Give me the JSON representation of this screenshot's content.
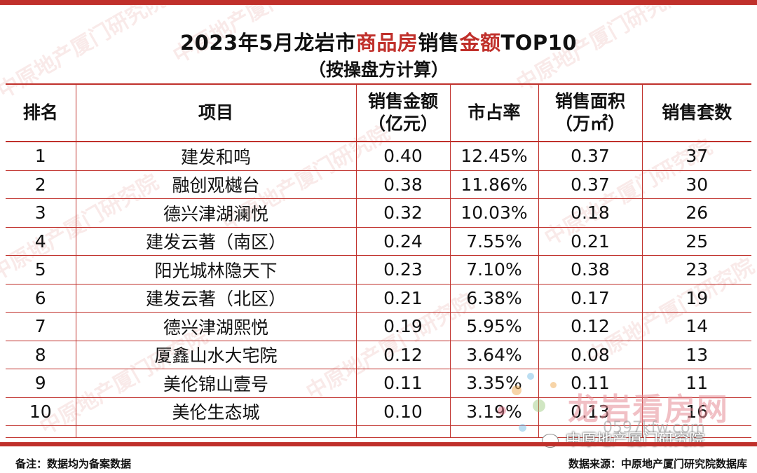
{
  "title": {
    "part1": "2023年5月龙岩市",
    "highlight1": "商品房",
    "part2": "销售",
    "highlight2": "金额",
    "part3": "TOP10",
    "subtitle": "（按操盘方计算）"
  },
  "table": {
    "headers": {
      "rank": "排名",
      "project": "项目",
      "amount_line1": "销售金额",
      "amount_line2": "（亿元）",
      "share": "市占率",
      "area_line1": "销售面积",
      "area_line2": "（万㎡）",
      "units": "销售套数"
    },
    "rows": [
      {
        "rank": "1",
        "project": "建发和鸣",
        "amount": "0.40",
        "share": "12.45%",
        "area": "0.37",
        "units": "37"
      },
      {
        "rank": "2",
        "project": "融创观樾台",
        "amount": "0.38",
        "share": "11.86%",
        "area": "0.37",
        "units": "30"
      },
      {
        "rank": "3",
        "project": "德兴津湖澜悦",
        "amount": "0.32",
        "share": "10.03%",
        "area": "0.18",
        "units": "26"
      },
      {
        "rank": "4",
        "project": "建发云著（南区）",
        "amount": "0.24",
        "share": "7.55%",
        "area": "0.21",
        "units": "25"
      },
      {
        "rank": "5",
        "project": "阳光城林隐天下",
        "amount": "0.23",
        "share": "7.10%",
        "area": "0.38",
        "units": "23"
      },
      {
        "rank": "6",
        "project": "建发云著（北区）",
        "amount": "0.21",
        "share": "6.38%",
        "area": "0.17",
        "units": "19"
      },
      {
        "rank": "7",
        "project": "德兴津湖熙悦",
        "amount": "0.19",
        "share": "5.95%",
        "area": "0.12",
        "units": "14"
      },
      {
        "rank": "8",
        "project": "厦鑫山水大宅院",
        "amount": "0.12",
        "share": "3.64%",
        "area": "0.08",
        "units": "13"
      },
      {
        "rank": "9",
        "project": "美伦锦山壹号",
        "amount": "0.11",
        "share": "3.35%",
        "area": "0.11",
        "units": "11"
      },
      {
        "rank": "10",
        "project": "美伦生态城",
        "amount": "0.10",
        "share": "3.19%",
        "area": "0.13",
        "units": "16"
      }
    ]
  },
  "footer": {
    "note": "备注：数据均为备案数据",
    "source": "数据来源：中原地产厦门研究院数据库"
  },
  "watermarks": {
    "text": "中原地产厦门研究院",
    "site_name": "龙岩看房网",
    "site_url": "0597kfw.com",
    "wechat_text": "中原地产厦门研究院"
  },
  "colors": {
    "accent": "#c0302b"
  }
}
